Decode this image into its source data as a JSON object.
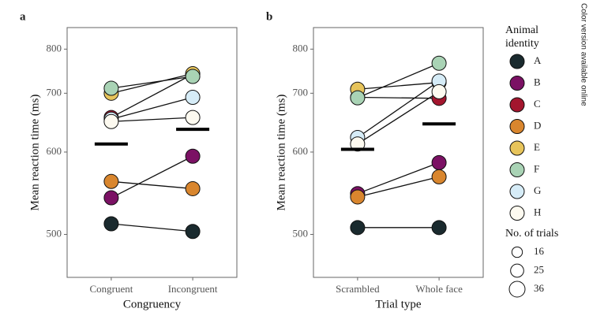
{
  "chart_data": [
    {
      "type": "paired-dot",
      "label": "a",
      "xlabel": "Congruency",
      "ylabel": "Mean reaction time (ms)",
      "scale": "reciprocal",
      "categories": [
        "Congruent",
        "Incongruent"
      ],
      "ylim": [
        460,
        860
      ],
      "yticks": [
        500,
        600,
        700,
        800
      ],
      "means": [
        612,
        635
      ],
      "series": [
        {
          "name": "A",
          "color": "#1a2a2e",
          "values": [
            511,
            503
          ]
        },
        {
          "name": "B",
          "color": "#7b1164",
          "values": [
            540,
            594
          ]
        },
        {
          "name": "C",
          "color": "#a3162e",
          "values": [
            655,
            740
          ]
        },
        {
          "name": "D",
          "color": "#d9862e",
          "values": [
            560,
            551
          ]
        },
        {
          "name": "E",
          "color": "#e7c45b",
          "values": [
            700,
            741
          ]
        },
        {
          "name": "F",
          "color": "#a9d3b5",
          "values": [
            710,
            735
          ]
        },
        {
          "name": "G",
          "color": "#d6ecf7",
          "values": [
            652,
            692
          ]
        },
        {
          "name": "H",
          "color": "#fdfaf0",
          "values": [
            648,
            655
          ]
        }
      ]
    },
    {
      "type": "paired-dot",
      "label": "b",
      "xlabel": "Trial type",
      "ylabel": "Mean reaction time (ms)",
      "scale": "reciprocal",
      "categories": [
        "Scrambled",
        "Whole face"
      ],
      "ylim": [
        460,
        860
      ],
      "yticks": [
        500,
        600,
        700,
        800
      ],
      "means": [
        604,
        644
      ],
      "series": [
        {
          "name": "A",
          "color": "#1a2a2e",
          "values": [
            507,
            507
          ]
        },
        {
          "name": "B",
          "color": "#7b1164",
          "values": [
            545,
            585
          ]
        },
        {
          "name": "C",
          "color": "#a3162e",
          "values": [
            692,
            690
          ]
        },
        {
          "name": "D",
          "color": "#d9862e",
          "values": [
            541,
            566
          ]
        },
        {
          "name": "E",
          "color": "#e7c45b",
          "values": [
            708,
            722
          ]
        },
        {
          "name": "F",
          "color": "#a9d3b5",
          "values": [
            691,
            765
          ]
        },
        {
          "name": "G",
          "color": "#d6ecf7",
          "values": [
            622,
            725
          ]
        },
        {
          "name": "H",
          "color": "#fdfaf0",
          "values": [
            612,
            703
          ]
        }
      ]
    }
  ],
  "legend": {
    "title": "Animal identity",
    "size_title": "No. of trials",
    "sizes": [
      16,
      25,
      36
    ]
  },
  "side_note": "Color version available online"
}
